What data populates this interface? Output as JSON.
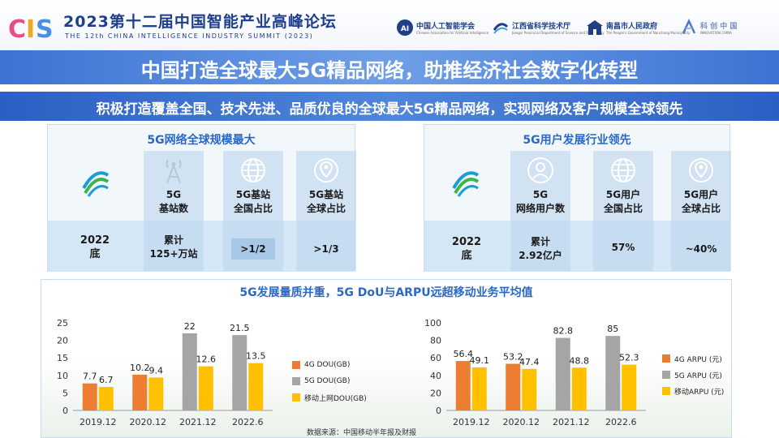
{
  "header": {
    "logo_text": "CIS",
    "title": "2023第十二届中国智能产业高峰论坛",
    "subtitle": "THE 12th CHINA INTELLIGENCE INDUSTRY SUMMIT (2023)",
    "partners": [
      {
        "name": "中国人工智能学会",
        "sub": "Chinese Association for Artificial Intelligence",
        "icon": "caai-icon"
      },
      {
        "name": "江西省科学技术厅",
        "sub": "Jiangxi Provincial Department of Science and Technology",
        "icon": "jiangxi-icon"
      },
      {
        "name": "南昌市人民政府",
        "sub": "The People's Government of Nanchang Municipality",
        "icon": "nanchang-icon"
      },
      {
        "name": "科 创 中 国",
        "sub": "INNOVATION CHINA",
        "icon": "innovation-icon"
      }
    ]
  },
  "main_title": "中国打造全球最大5G精品网络，助推经济社会数字化转型",
  "sub_title": "积极打造覆盖全国、技术先进、品质优良的全球最大5G精品网络，实现网络及客户规模全球领先",
  "left_panel": {
    "title": "5G网络全球规模最大",
    "row_label": "2022\n底",
    "columns": [
      {
        "label": "5G\n基站数",
        "value": "累计\n125+万站",
        "icon": "antenna-icon"
      },
      {
        "label": "5G基站\n全国占比",
        "value": ">1/2",
        "icon": "globe-icon"
      },
      {
        "label": "5G基站\n全球占比",
        "value": ">1/3",
        "icon": "location-globe-icon"
      }
    ]
  },
  "right_panel": {
    "title": "5G用户发展行业领先",
    "row_label": "2022\n底",
    "columns": [
      {
        "label": "5G\n网络用户数",
        "value": "累计\n2.92亿户",
        "icon": "user-icon"
      },
      {
        "label": "5G用户\n全国占比",
        "value": "57%",
        "icon": "globe-icon"
      },
      {
        "label": "5G用户\n全球占比",
        "value": "~40%",
        "icon": "location-globe-icon"
      }
    ]
  },
  "bottom_title": "5G发展量质并重，5G DoU与ARPU远超移动业务平均值",
  "colors": {
    "orange": "#ED7D31",
    "gray": "#A5A5A5",
    "yellow": "#FFC000"
  },
  "chart_data": [
    {
      "type": "bar",
      "title": "",
      "categories": [
        "2019.12",
        "2020.12",
        "2021.12",
        "2022.6"
      ],
      "ylim": [
        0,
        25
      ],
      "yticks": [
        0,
        5,
        10,
        15,
        20,
        25
      ],
      "legend_position": "right",
      "series": [
        {
          "name": "4G DOU(GB)",
          "values": [
            7.7,
            10.2,
            null,
            null
          ],
          "color": "#ED7D31"
        },
        {
          "name": "5G DOU(GB)",
          "values": [
            null,
            null,
            22,
            21.5
          ],
          "color": "#A5A5A5"
        },
        {
          "name": "移动上网DOU(GB)",
          "values": [
            6.7,
            9.4,
            12.6,
            13.5
          ],
          "color": "#FFC000"
        }
      ]
    },
    {
      "type": "bar",
      "title": "",
      "categories": [
        "2019.12",
        "2020.12",
        "2021.12",
        "2022.6"
      ],
      "ylim": [
        0,
        100
      ],
      "yticks": [
        0,
        20,
        40,
        60,
        80,
        100
      ],
      "legend_position": "right",
      "series": [
        {
          "name": "4G ARPU (元)",
          "values": [
            56.4,
            53.2,
            null,
            null
          ],
          "color": "#ED7D31"
        },
        {
          "name": "5G ARPU (元)",
          "values": [
            null,
            null,
            82.8,
            85
          ],
          "color": "#A5A5A5"
        },
        {
          "name": "移动ARPU (元)",
          "values": [
            49.1,
            47.4,
            48.8,
            52.3
          ],
          "color": "#FFC000"
        }
      ]
    }
  ],
  "source": "数据来源：中国移动半年报及财报"
}
